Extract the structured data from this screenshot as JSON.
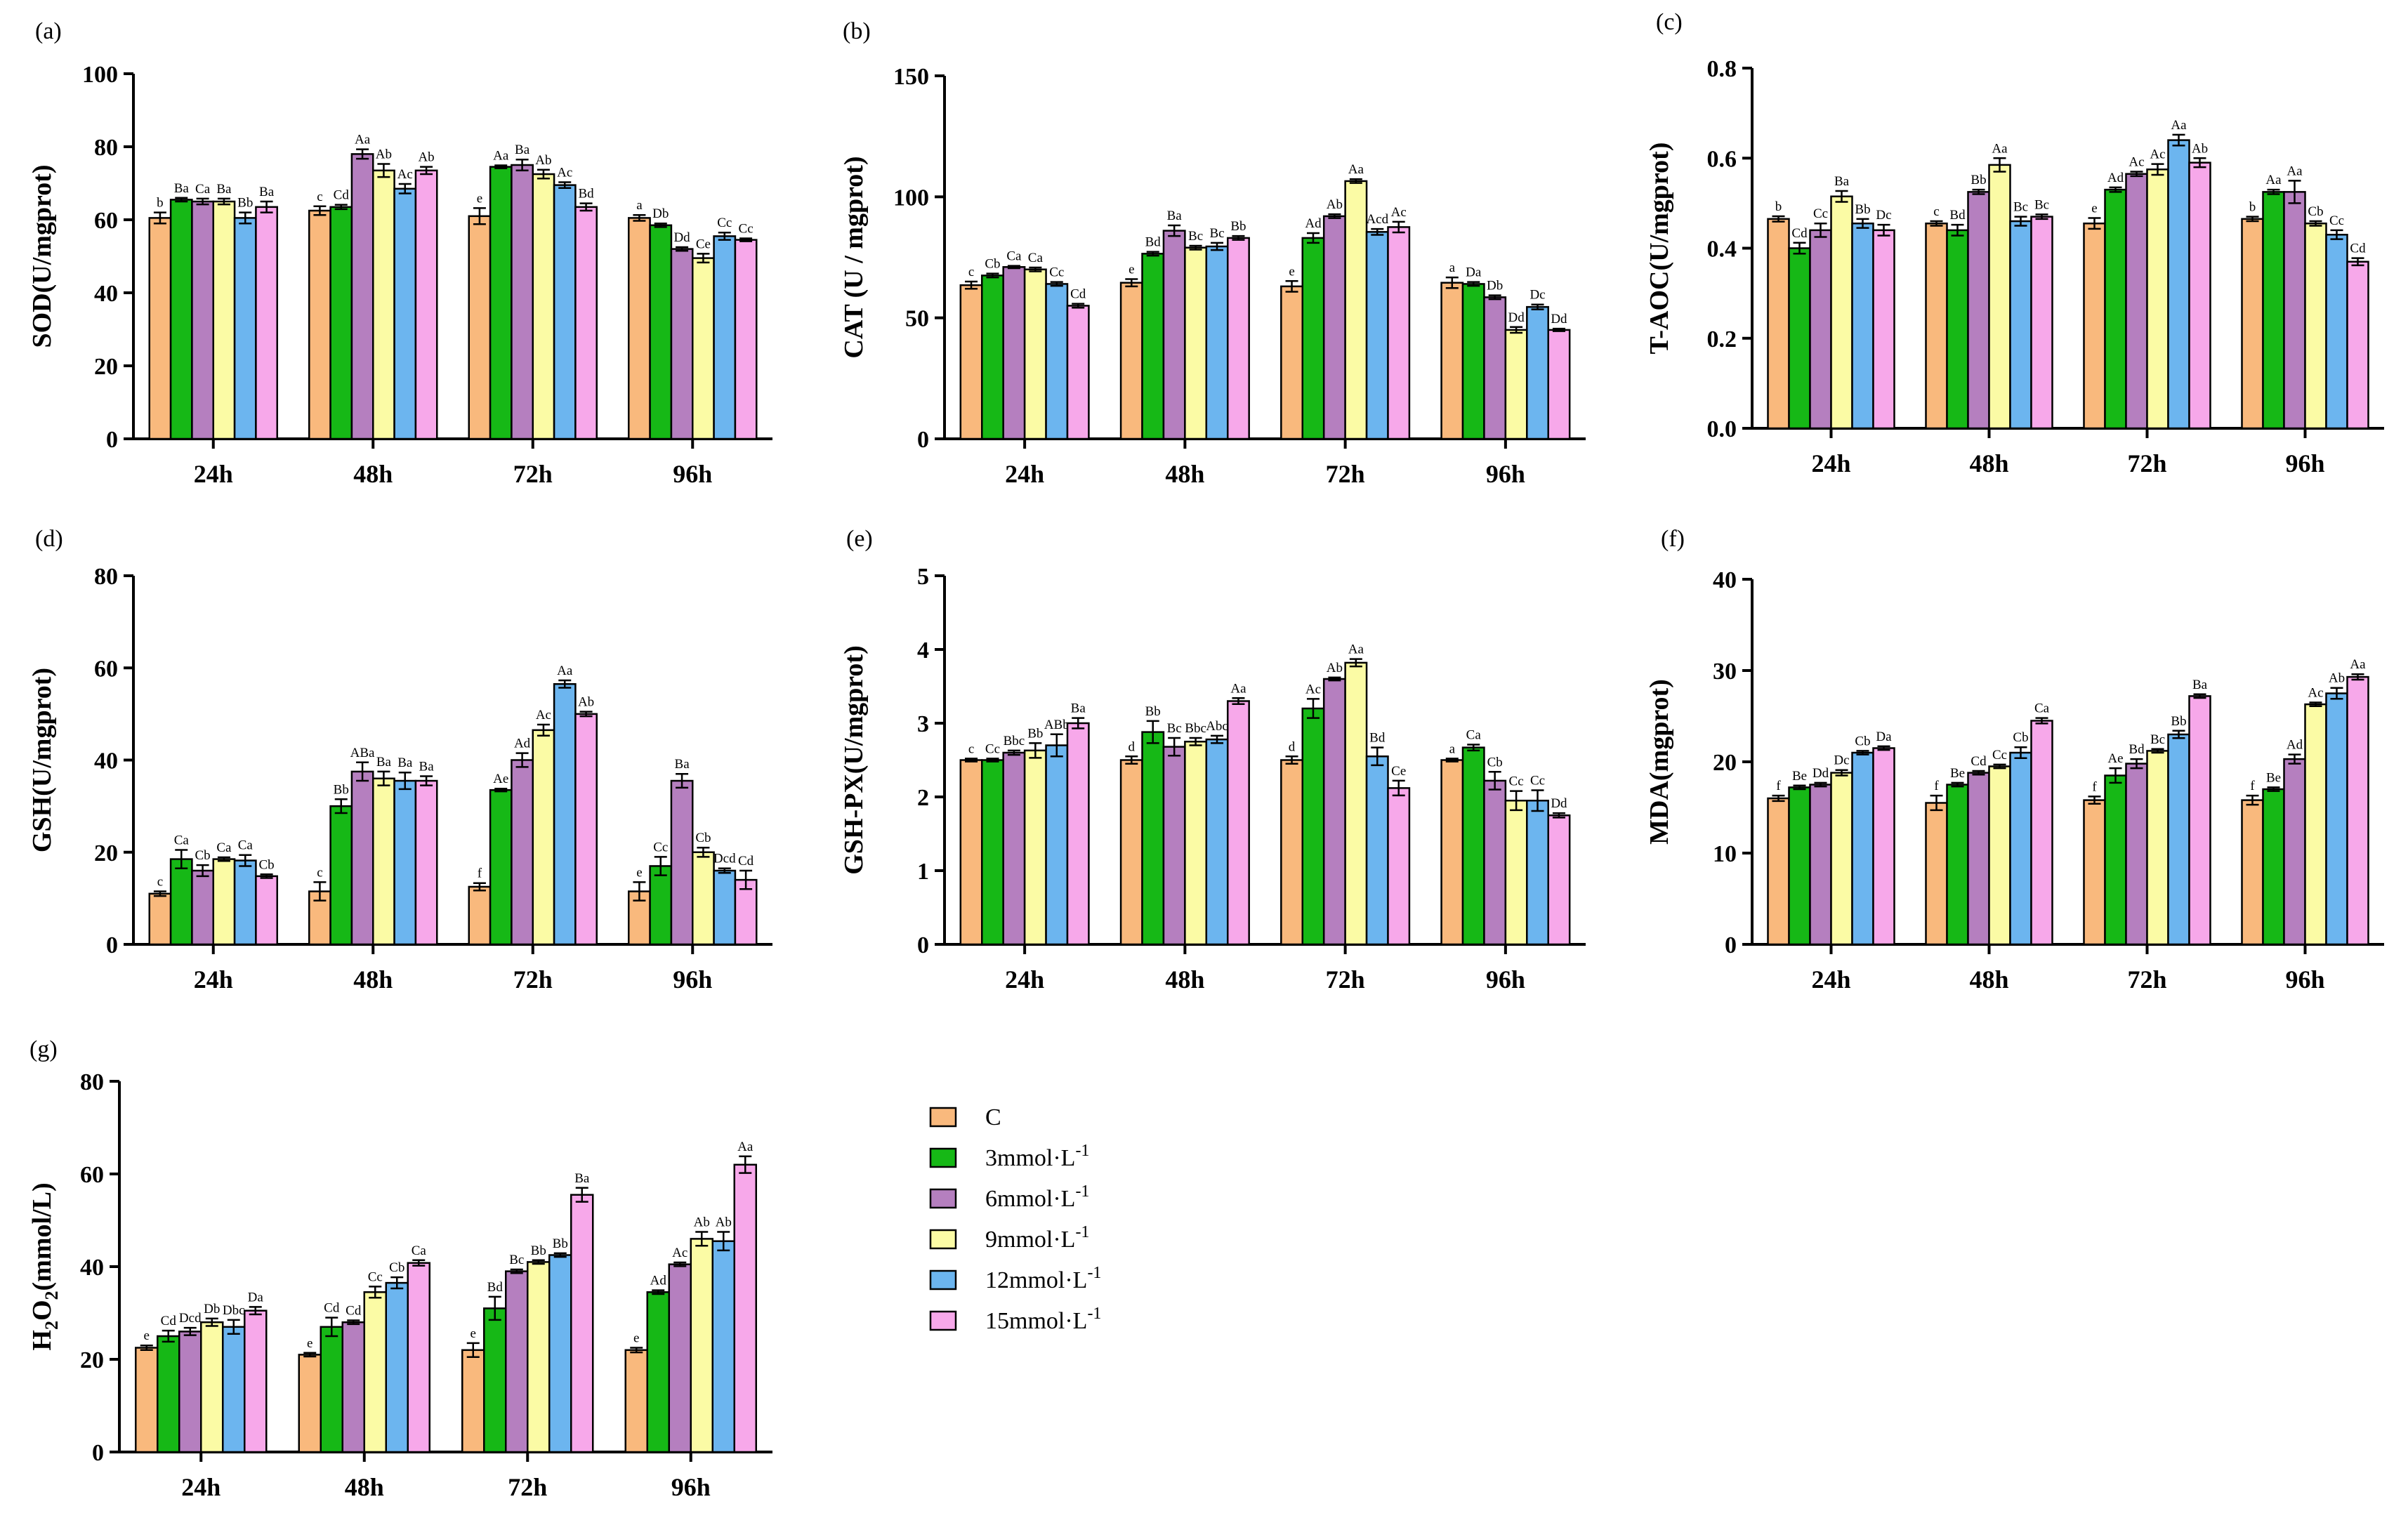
{
  "series": [
    {
      "name": "C",
      "color": "#f9b97d"
    },
    {
      "name": "3mmol·L⁻¹",
      "color": "#16b816"
    },
    {
      "name": "6mmol·L⁻¹",
      "color": "#b57fbf"
    },
    {
      "name": "9mmol·L⁻¹",
      "color": "#fbfba5"
    },
    {
      "name": "12mmol·L⁻¹",
      "color": "#6cb5ef"
    },
    {
      "name": "15mmol·L⁻¹",
      "color": "#f7a8ea"
    }
  ],
  "chart_data": [
    {
      "panel": "(a)",
      "type": "bar",
      "ylabel": "SOD(U/mgprot)",
      "categories": [
        "24h",
        "48h",
        "72h",
        "96h"
      ],
      "ylim": [
        0,
        100
      ],
      "yticks": [
        "0",
        "20",
        "40",
        "60",
        "80",
        "100"
      ],
      "values": [
        [
          60.5,
          65.5,
          65,
          65,
          60.5,
          63.5
        ],
        [
          62.5,
          63.5,
          78,
          73.5,
          68.5,
          73.5
        ],
        [
          61,
          74.5,
          75,
          72.5,
          69.5,
          63.5
        ],
        [
          60.5,
          58.5,
          52,
          49.5,
          55.5,
          54.5
        ]
      ],
      "errors": [
        [
          1.5,
          0.5,
          0.8,
          0.8,
          1.5,
          1.5
        ],
        [
          1.2,
          0.6,
          1.3,
          1.8,
          1.3,
          1.0
        ],
        [
          2.2,
          0.4,
          1.5,
          1.2,
          0.8,
          1.0
        ],
        [
          0.8,
          0.5,
          0.5,
          1.2,
          1.0,
          0.4
        ]
      ],
      "labels": [
        [
          "b",
          "Ba",
          "Ca",
          "Ba",
          "Bb",
          "Ba"
        ],
        [
          "c",
          "Cd",
          "Aa",
          "Ab",
          "Ac",
          "Ab"
        ],
        [
          "e",
          "Aa",
          "Ba",
          "Ab",
          "Ac",
          "Bd"
        ],
        [
          "a",
          "Db",
          "Dd",
          "Ce",
          "Cc",
          "Cc"
        ]
      ]
    },
    {
      "panel": "(b)",
      "type": "bar",
      "ylabel": "CAT (U / mgprot)",
      "categories": [
        "24h",
        "48h",
        "72h",
        "96h"
      ],
      "ylim": [
        0,
        150
      ],
      "yticks": [
        "0",
        "50",
        "100",
        "150"
      ],
      "values": [
        [
          63.5,
          67.5,
          71,
          70,
          64,
          55
        ],
        [
          64.5,
          76.5,
          86,
          79,
          79.5,
          83
        ],
        [
          63,
          83,
          92,
          106.5,
          85.5,
          87.5
        ],
        [
          64.5,
          64,
          58.5,
          45,
          54.5,
          45
        ]
      ],
      "errors": [
        [
          1.5,
          0.8,
          0.5,
          0.8,
          0.8,
          0.8
        ],
        [
          1.5,
          0.8,
          2.2,
          0.8,
          1.5,
          0.8
        ],
        [
          2.2,
          2.0,
          0.8,
          0.8,
          1.2,
          2.2
        ],
        [
          2.2,
          0.8,
          0.8,
          1.2,
          1.0,
          0.5
        ]
      ],
      "labels": [
        [
          "c",
          "Cb",
          "Ca",
          "Ca",
          "Cc",
          "Cd"
        ],
        [
          "e",
          "Bd",
          "Ba",
          "Bc",
          "Bc",
          "Bb"
        ],
        [
          "e",
          "Ad",
          "Ab",
          "Aa",
          "Acd",
          "Ac"
        ],
        [
          "a",
          "Da",
          "Db",
          "Dd",
          "Dc",
          "Dd"
        ]
      ]
    },
    {
      "panel": "(c)",
      "type": "bar",
      "ylabel": "T-AOC(U/mgprot)",
      "categories": [
        "24h",
        "48h",
        "72h",
        "96h"
      ],
      "ylim": [
        0,
        0.8
      ],
      "yticks": [
        "0.0",
        "0.2",
        "0.4",
        "0.6",
        "0.8"
      ],
      "values": [
        [
          0.465,
          0.4,
          0.44,
          0.515,
          0.455,
          0.44
        ],
        [
          0.455,
          0.44,
          0.525,
          0.585,
          0.46,
          0.47
        ],
        [
          0.455,
          0.53,
          0.565,
          0.575,
          0.64,
          0.59
        ],
        [
          0.465,
          0.525,
          0.525,
          0.455,
          0.43,
          0.37
        ]
      ],
      "errors": [
        [
          0.006,
          0.012,
          0.015,
          0.012,
          0.01,
          0.012
        ],
        [
          0.005,
          0.012,
          0.005,
          0.015,
          0.01,
          0.005
        ],
        [
          0.012,
          0.005,
          0.005,
          0.012,
          0.012,
          0.01
        ],
        [
          0.005,
          0.005,
          0.025,
          0.005,
          0.01,
          0.008
        ]
      ],
      "labels": [
        [
          "b",
          "Cd",
          "Cc",
          "Ba",
          "Bb",
          "Dc"
        ],
        [
          "c",
          "Bd",
          "Bb",
          "Aa",
          "Bc",
          "Bc"
        ],
        [
          "e",
          "Ad",
          "Ac",
          "Ac",
          "Aa",
          "Ab"
        ],
        [
          "b",
          "Aa",
          "Aa",
          "Cb",
          "Cc",
          "Cd"
        ]
      ]
    },
    {
      "panel": "(d)",
      "type": "bar",
      "ylabel": "GSH(U/mgprot)",
      "categories": [
        "24h",
        "48h",
        "72h",
        "96h"
      ],
      "ylim": [
        0,
        80
      ],
      "yticks": [
        "0",
        "20",
        "40",
        "60",
        "80"
      ],
      "values": [
        [
          11,
          18.5,
          16,
          18.5,
          18.2,
          14.8
        ],
        [
          11.5,
          30,
          37.5,
          36,
          35.5,
          35.5
        ],
        [
          12.5,
          33.5,
          40,
          46.5,
          56.5,
          50
        ],
        [
          11.5,
          17,
          35.5,
          20,
          16,
          14
        ]
      ],
      "errors": [
        [
          0.5,
          2.0,
          1.2,
          0.4,
          1.2,
          0.4
        ],
        [
          2.0,
          1.5,
          2.0,
          1.5,
          1.8,
          1.0
        ],
        [
          0.8,
          0.3,
          1.5,
          1.2,
          0.8,
          0.5
        ],
        [
          2.0,
          2.0,
          1.5,
          1.0,
          0.5,
          2.0
        ]
      ],
      "labels": [
        [
          "c",
          "Ca",
          "Cb",
          "Ca",
          "Ca",
          "Cb"
        ],
        [
          "c",
          "Bb",
          "ABa",
          "Ba",
          "Ba",
          "Ba"
        ],
        [
          "f",
          "Ae",
          "Ad",
          "Ac",
          "Aa",
          "Ab"
        ],
        [
          "e",
          "Cc",
          "Ba",
          "Cb",
          "Dcd",
          "Cd"
        ]
      ]
    },
    {
      "panel": "(e)",
      "type": "bar",
      "ylabel": "GSH-PX(U/mgprot)",
      "categories": [
        "24h",
        "48h",
        "72h",
        "96h"
      ],
      "ylim": [
        0,
        5
      ],
      "yticks": [
        "0",
        "1",
        "2",
        "3",
        "4",
        "5"
      ],
      "values": [
        [
          2.5,
          2.5,
          2.6,
          2.63,
          2.7,
          3.0
        ],
        [
          2.5,
          2.88,
          2.68,
          2.75,
          2.78,
          3.3
        ],
        [
          2.5,
          3.2,
          3.6,
          3.82,
          2.55,
          2.12
        ],
        [
          2.5,
          2.67,
          2.22,
          1.95,
          1.95,
          1.75
        ]
      ],
      "errors": [
        [
          0.02,
          0.02,
          0.03,
          0.1,
          0.15,
          0.07
        ],
        [
          0.05,
          0.15,
          0.12,
          0.05,
          0.05,
          0.04
        ],
        [
          0.05,
          0.13,
          0.02,
          0.05,
          0.12,
          0.1
        ],
        [
          0.02,
          0.04,
          0.12,
          0.13,
          0.14,
          0.03
        ]
      ],
      "labels": [
        [
          "c",
          "Cc",
          "Bbc",
          "Bb",
          "ABb",
          "Ba"
        ],
        [
          "d",
          "Bb",
          "Bc",
          "Bbc",
          "Abc",
          "Aa"
        ],
        [
          "d",
          "Ac",
          "Ab",
          "Aa",
          "Bd",
          "Ce"
        ],
        [
          "a",
          "Ca",
          "Cb",
          "Cc",
          "Cc",
          "Dd"
        ]
      ]
    },
    {
      "panel": "(f)",
      "type": "bar",
      "ylabel": "MDA(mgprot)",
      "categories": [
        "24h",
        "48h",
        "72h",
        "96h"
      ],
      "ylim": [
        0,
        40
      ],
      "yticks": [
        "0",
        "10",
        "20",
        "30",
        "40"
      ],
      "values": [
        [
          16,
          17.2,
          17.5,
          18.8,
          21,
          21.5
        ],
        [
          15.5,
          17.5,
          18.8,
          19.5,
          21,
          24.5
        ],
        [
          15.8,
          18.5,
          19.8,
          21.2,
          23,
          27.2
        ],
        [
          15.8,
          17,
          20.3,
          26.3,
          27.5,
          29.3
        ]
      ],
      "errors": [
        [
          0.3,
          0.2,
          0.2,
          0.3,
          0.2,
          0.2
        ],
        [
          0.8,
          0.2,
          0.2,
          0.2,
          0.6,
          0.3
        ],
        [
          0.4,
          0.8,
          0.5,
          0.2,
          0.4,
          0.2
        ],
        [
          0.5,
          0.2,
          0.5,
          0.2,
          0.6,
          0.3
        ]
      ],
      "labels": [
        [
          "f",
          "Be",
          "Dd",
          "Dc",
          "Cb",
          "Da"
        ],
        [
          "f",
          "Be",
          "Cd",
          "Cc",
          "Cb",
          "Ca"
        ],
        [
          "f",
          "Ae",
          "Bd",
          "Bc",
          "Bb",
          "Ba"
        ],
        [
          "f",
          "Be",
          "Ad",
          "Ac",
          "Ab",
          "Aa"
        ]
      ]
    },
    {
      "panel": "(g)",
      "type": "bar",
      "ylabel": "H2O2(mmol/L)",
      "categories": [
        "24h",
        "48h",
        "72h",
        "96h"
      ],
      "ylim": [
        0,
        80
      ],
      "yticks": [
        "0",
        "20",
        "40",
        "60",
        "80"
      ],
      "values": [
        [
          22.5,
          25,
          26,
          28,
          27,
          30.5
        ],
        [
          21,
          27,
          28,
          34.5,
          36.5,
          40.8
        ],
        [
          22,
          31,
          39,
          41,
          42.5,
          55.5
        ],
        [
          22,
          34.5,
          40.5,
          46,
          45.5,
          62
        ]
      ],
      "errors": [
        [
          0.5,
          1.2,
          0.8,
          0.8,
          1.5,
          0.8
        ],
        [
          0.4,
          2.0,
          0.4,
          1.2,
          1.2,
          0.6
        ],
        [
          1.5,
          2.5,
          0.4,
          0.4,
          0.4,
          1.5
        ],
        [
          0.5,
          0.4,
          0.4,
          1.5,
          2.0,
          1.8
        ]
      ],
      "labels": [
        [
          "e",
          "Cd",
          "Dcd",
          "Db",
          "Dbc",
          "Da"
        ],
        [
          "e",
          "Cd",
          "Cd",
          "Cc",
          "Cb",
          "Ca"
        ],
        [
          "e",
          "Bd",
          "Bc",
          "Bb",
          "Bb",
          "Ba"
        ],
        [
          "e",
          "Ad",
          "Ac",
          "Ab",
          "Ab",
          "Aa"
        ]
      ]
    }
  ]
}
